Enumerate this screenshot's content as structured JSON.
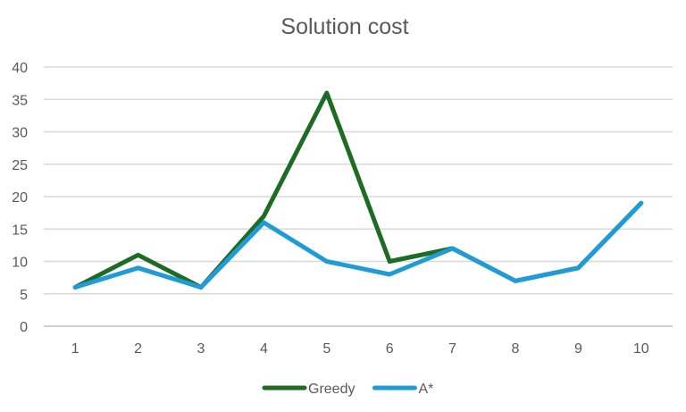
{
  "chart_data": {
    "type": "line",
    "title": "Solution cost",
    "xlabel": "",
    "ylabel": "",
    "categories": [
      "1",
      "2",
      "3",
      "4",
      "5",
      "6",
      "7",
      "8",
      "9",
      "10"
    ],
    "ylim": [
      0,
      40
    ],
    "yticks": [
      0,
      5,
      10,
      15,
      20,
      25,
      30,
      35,
      40
    ],
    "grid": true,
    "legend_position": "bottom",
    "series": [
      {
        "name": "Greedy",
        "color": "#1e6b24",
        "values": [
          6,
          11,
          6,
          17,
          36,
          10,
          12,
          7,
          9,
          19
        ]
      },
      {
        "name": "A*",
        "color": "#1f9bd7",
        "values": [
          6,
          9,
          6,
          16,
          10,
          8,
          12,
          7,
          9,
          19
        ]
      }
    ]
  }
}
